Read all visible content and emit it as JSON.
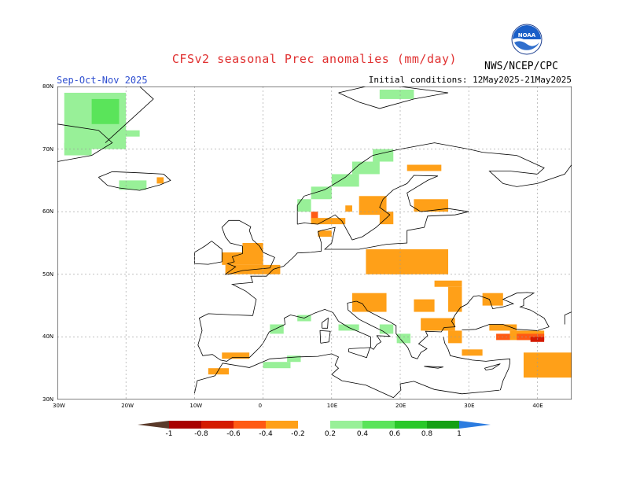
{
  "header": {
    "title": "CFSv2 seasonal Prec anomalies (mm/day)",
    "period": "Sep-Oct-Nov 2025",
    "initial_conditions": "Initial conditions: 12May2025-21May2025",
    "org": "NWS/NCEP/CPC",
    "logo_text": "NOAA"
  },
  "axes": {
    "lat_labels": [
      "80N",
      "70N",
      "60N",
      "50N",
      "40N",
      "30N"
    ],
    "lon_labels": [
      "30W",
      "20W",
      "10W",
      "0",
      "10E",
      "20E",
      "30E",
      "40E"
    ]
  },
  "legend": {
    "labels": [
      "-1",
      "-0.8",
      "-0.6",
      "-0.4",
      "-0.2",
      "0.2",
      "0.4",
      "0.6",
      "0.8",
      "1"
    ],
    "colors": [
      "#5a3a2a",
      "#a80000",
      "#d41a00",
      "#ff5a14",
      "#ffa018",
      "#ffffff",
      "#98f098",
      "#5ae45a",
      "#28c828",
      "#14a014",
      "#2c7ce0"
    ]
  },
  "map": {
    "extent": {
      "lon_min": -30,
      "lon_max": 45,
      "lat_min": 30,
      "lat_max": 80
    },
    "grid": true,
    "colors": {
      "dry": "#ffa018",
      "very_dry": "#ff5a14",
      "extreme_dry": "#d41a00",
      "wet_light": "#98f098",
      "wet": "#5ae45a",
      "wet_strong": "#28c828"
    },
    "anomaly_cells": [
      {
        "lon": -29,
        "lat": 79,
        "w": 9,
        "h": 9,
        "level": "wet_light"
      },
      {
        "lon": -25,
        "lat": 78,
        "w": 4,
        "h": 4,
        "level": "wet"
      },
      {
        "lon": -29,
        "lat": 71,
        "w": 4,
        "h": 2,
        "level": "wet_light"
      },
      {
        "lon": -21,
        "lat": 73,
        "w": 3,
        "h": 1,
        "level": "wet_light"
      },
      {
        "lon": -21,
        "lat": 65,
        "w": 4,
        "h": 1.5,
        "level": "wet_light"
      },
      {
        "lon": -15.5,
        "lat": 65.5,
        "w": 1,
        "h": 1,
        "level": "dry"
      },
      {
        "lon": 5,
        "lat": 62,
        "w": 2,
        "h": 2,
        "level": "wet_light"
      },
      {
        "lon": 7,
        "lat": 64,
        "w": 3,
        "h": 2,
        "level": "wet_light"
      },
      {
        "lon": 10,
        "lat": 66,
        "w": 4,
        "h": 2,
        "level": "wet_light"
      },
      {
        "lon": 13,
        "lat": 68,
        "w": 4,
        "h": 2,
        "level": "wet_light"
      },
      {
        "lon": 16,
        "lat": 70,
        "w": 3,
        "h": 2,
        "level": "wet_light"
      },
      {
        "lon": 17,
        "lat": 79.5,
        "w": 5,
        "h": 1.5,
        "level": "wet_light"
      },
      {
        "lon": 7,
        "lat": 60,
        "w": 1,
        "h": 1.5,
        "level": "very_dry"
      },
      {
        "lon": 7,
        "lat": 59,
        "w": 5,
        "h": 1,
        "level": "dry"
      },
      {
        "lon": 8,
        "lat": 57,
        "w": 2,
        "h": 1,
        "level": "dry"
      },
      {
        "lon": 14,
        "lat": 62.5,
        "w": 4,
        "h": 3,
        "level": "dry"
      },
      {
        "lon": 17,
        "lat": 60,
        "w": 2,
        "h": 2,
        "level": "dry"
      },
      {
        "lon": 21,
        "lat": 67.5,
        "w": 5,
        "h": 1,
        "level": "dry"
      },
      {
        "lon": 22,
        "lat": 62,
        "w": 5,
        "h": 2,
        "level": "dry"
      },
      {
        "lon": 12,
        "lat": 61,
        "w": 1,
        "h": 1,
        "level": "dry"
      },
      {
        "lon": -3,
        "lat": 55,
        "w": 3,
        "h": 3,
        "level": "dry"
      },
      {
        "lon": -6,
        "lat": 53.5,
        "w": 6,
        "h": 2,
        "level": "dry"
      },
      {
        "lon": -5.5,
        "lat": 51.5,
        "w": 8,
        "h": 1.5,
        "level": "dry"
      },
      {
        "lon": 15,
        "lat": 54,
        "w": 12,
        "h": 4,
        "level": "dry"
      },
      {
        "lon": 18.5,
        "lat": 51,
        "w": 3,
        "h": 1,
        "level": "dry"
      },
      {
        "lon": 25,
        "lat": 49,
        "w": 4,
        "h": 1,
        "level": "dry"
      },
      {
        "lon": 27,
        "lat": 48,
        "w": 2,
        "h": 4,
        "level": "dry"
      },
      {
        "lon": 32,
        "lat": 47,
        "w": 3,
        "h": 2,
        "level": "dry"
      },
      {
        "lon": 13,
        "lat": 47,
        "w": 5,
        "h": 3,
        "level": "dry"
      },
      {
        "lon": 22,
        "lat": 46,
        "w": 3,
        "h": 2,
        "level": "dry"
      },
      {
        "lon": 23,
        "lat": 43,
        "w": 5,
        "h": 2,
        "level": "dry"
      },
      {
        "lon": 27,
        "lat": 41,
        "w": 2,
        "h": 2,
        "level": "dry"
      },
      {
        "lon": 33,
        "lat": 42,
        "w": 4,
        "h": 1,
        "level": "dry"
      },
      {
        "lon": 36,
        "lat": 41,
        "w": 5,
        "h": 1.5,
        "level": "dry"
      },
      {
        "lon": 34,
        "lat": 40.5,
        "w": 2,
        "h": 1,
        "level": "very_dry"
      },
      {
        "lon": 37,
        "lat": 40.5,
        "w": 4,
        "h": 1,
        "level": "very_dry"
      },
      {
        "lon": 39,
        "lat": 40,
        "w": 2,
        "h": 0.8,
        "level": "extreme_dry"
      },
      {
        "lon": 29,
        "lat": 38,
        "w": 3,
        "h": 1,
        "level": "dry"
      },
      {
        "lon": 38,
        "lat": 37.5,
        "w": 7,
        "h": 4,
        "level": "dry"
      },
      {
        "lon": -6,
        "lat": 37.5,
        "w": 4,
        "h": 1,
        "level": "dry"
      },
      {
        "lon": -8,
        "lat": 35,
        "w": 3,
        "h": 1,
        "level": "dry"
      },
      {
        "lon": 0,
        "lat": 36,
        "w": 4,
        "h": 1,
        "level": "wet_light"
      },
      {
        "lon": 3.5,
        "lat": 37,
        "w": 2,
        "h": 1,
        "level": "wet_light"
      },
      {
        "lon": 1,
        "lat": 42,
        "w": 2,
        "h": 1.5,
        "level": "wet_light"
      },
      {
        "lon": 5,
        "lat": 43.5,
        "w": 2,
        "h": 1,
        "level": "wet_light"
      },
      {
        "lon": 11,
        "lat": 42,
        "w": 3,
        "h": 1,
        "level": "wet_light"
      },
      {
        "lon": 17,
        "lat": 42,
        "w": 2,
        "h": 1.5,
        "level": "wet_light"
      },
      {
        "lon": 19.5,
        "lat": 40.5,
        "w": 2,
        "h": 1.5,
        "level": "wet_light"
      }
    ]
  }
}
